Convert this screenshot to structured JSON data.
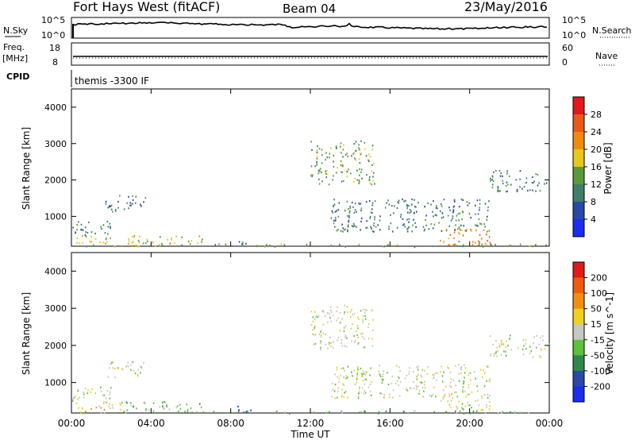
{
  "header": {
    "station": "Fort Hays West (fitACF)",
    "beam": "Beam 04",
    "date": "23/May/2016"
  },
  "top_panels": {
    "nsky_label": "N.Sky",
    "nsky_ticks": [
      "10^5",
      "10^0"
    ],
    "nsearch_label": "N.Search",
    "nsearch_ticks": [
      "10^5",
      "10^0"
    ],
    "freq_label_1": "Freq.",
    "freq_label_2": "[MHz]",
    "freq_ticks": [
      "18",
      "8"
    ],
    "nave_label": "Nave",
    "nave_ticks": [
      "60",
      "0"
    ],
    "cpid_label": "CPID",
    "cpid_value": "themis -3300 IF"
  },
  "chart_data": [
    {
      "type": "heatmap",
      "title": "",
      "xlabel": "",
      "ylabel": "Slant Range [km]",
      "ylim": [
        180,
        4500
      ],
      "yticks": [
        "1000",
        "2000",
        "3000",
        "4000"
      ],
      "colorbar_label": "Power [dB]",
      "colorbar_ticks": [
        "4",
        "8",
        "12",
        "16",
        "20",
        "24",
        "28"
      ],
      "colors": [
        "#1a2ef0",
        "#2b4aa8",
        "#3d7f6a",
        "#5a9a3c",
        "#e6c81e",
        "#f08a10",
        "#e85a1a",
        "#e01a1a"
      ],
      "echo_regions": [
        {
          "t0": 0.2,
          "t1": 6.6,
          "r0": 180,
          "r1": 500,
          "level": 4
        },
        {
          "t0": 0.0,
          "t1": 2.0,
          "r0": 500,
          "r1": 900,
          "level": 2
        },
        {
          "t0": 1.7,
          "t1": 3.7,
          "r0": 1150,
          "r1": 1600,
          "level": 2
        },
        {
          "t0": 8.2,
          "t1": 9.0,
          "r0": 200,
          "r1": 400,
          "level": 1
        },
        {
          "t0": 12.0,
          "t1": 15.2,
          "r0": 1900,
          "r1": 3100,
          "level": 3
        },
        {
          "t0": 13.0,
          "t1": 21.0,
          "r0": 600,
          "r1": 1500,
          "level": 2
        },
        {
          "t0": 18.5,
          "t1": 21.0,
          "r0": 200,
          "r1": 700,
          "level": 5
        },
        {
          "t0": 21.0,
          "t1": 24.0,
          "r0": 1700,
          "r1": 2300,
          "level": 2
        },
        {
          "t0": 7.0,
          "t1": 24.0,
          "r0": 180,
          "r1": 260,
          "level": 3
        }
      ]
    },
    {
      "type": "heatmap",
      "title": "",
      "xlabel": "Time UT",
      "ylabel": "Slant Range [km]",
      "ylim": [
        180,
        4500
      ],
      "yticks": [
        "1000",
        "2000",
        "3000",
        "4000"
      ],
      "xticks": [
        "00:00",
        "04:00",
        "08:00",
        "12:00",
        "16:00",
        "20:00",
        "00:00"
      ],
      "xrange_hours": [
        0,
        24
      ],
      "colorbar_label": "Velocity [m s^-1]",
      "colorbar_ticks": [
        "200",
        "100",
        "50",
        "15",
        "-15",
        "-50",
        "-100",
        "-200"
      ],
      "colors": [
        "#1a2ef0",
        "#2b4aa8",
        "#2f8a4a",
        "#5cc23a",
        "#c8c8c0",
        "#f0d020",
        "#f09010",
        "#f05a10",
        "#e01a1a"
      ],
      "echo_regions": [
        {
          "t0": 0.2,
          "t1": 2.5,
          "r0": 180,
          "r1": 500,
          "level": 5
        },
        {
          "t0": 2.5,
          "t1": 6.6,
          "r0": 180,
          "r1": 500,
          "level": 3
        },
        {
          "t0": 0.0,
          "t1": 2.0,
          "r0": 500,
          "r1": 900,
          "level": 4
        },
        {
          "t0": 1.7,
          "t1": 3.7,
          "r0": 1150,
          "r1": 1600,
          "level": 4
        },
        {
          "t0": 8.2,
          "t1": 9.0,
          "r0": 200,
          "r1": 400,
          "level": 0
        },
        {
          "t0": 12.0,
          "t1": 15.2,
          "r0": 1900,
          "r1": 3100,
          "level": 4
        },
        {
          "t0": 13.0,
          "t1": 21.0,
          "r0": 600,
          "r1": 1500,
          "level": 4
        },
        {
          "t0": 18.5,
          "t1": 21.0,
          "r0": 200,
          "r1": 700,
          "level": 4
        },
        {
          "t0": 21.0,
          "t1": 24.0,
          "r0": 1700,
          "r1": 2300,
          "level": 4
        },
        {
          "t0": 7.0,
          "t1": 24.0,
          "r0": 180,
          "r1": 260,
          "level": 3
        }
      ]
    }
  ]
}
